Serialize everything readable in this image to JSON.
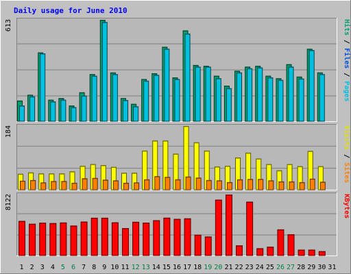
{
  "chart_data": {
    "type": "bar",
    "title": "Daily usage for June 2010",
    "categories": [
      "1",
      "2",
      "3",
      "4",
      "5",
      "6",
      "7",
      "8",
      "9",
      "10",
      "11",
      "12",
      "13",
      "14",
      "15",
      "16",
      "17",
      "18",
      "19",
      "20",
      "21",
      "22",
      "23",
      "24",
      "25",
      "26",
      "27",
      "28",
      "29",
      "30",
      "31"
    ],
    "weekend_days": [
      "5",
      "6",
      "12",
      "13",
      "19",
      "20",
      "26",
      "27"
    ],
    "panels": [
      {
        "id": "pages-files-hits",
        "max_label": "613",
        "ylim": [
          0,
          613
        ],
        "legend": [
          {
            "label": "Pages",
            "color": "#00c0e0"
          },
          {
            "label": "Files",
            "color": "#0050e0"
          },
          {
            "label": "Hits",
            "color": "#00a070"
          }
        ],
        "series": [
          {
            "name": "Hits",
            "color": "#00a070",
            "values": [
              125,
              160,
              416,
              130,
              140,
              95,
              175,
              285,
              613,
              295,
              140,
              105,
              255,
              290,
              450,
              265,
              549,
              340,
              335,
              275,
              215,
              305,
              330,
              335,
              275,
              260,
              345,
              270,
              438,
              295,
              0
            ]
          },
          {
            "name": "Files",
            "color": "#00c0e0",
            "values": [
              95,
              150,
              410,
              120,
              130,
              85,
              155,
              275,
              600,
              285,
              128,
              90,
              245,
              280,
              438,
              255,
              530,
              330,
              330,
              260,
              200,
              295,
              320,
              325,
              265,
              250,
              330,
              258,
              430,
              285,
              0
            ]
          }
        ]
      },
      {
        "id": "visits-sites",
        "max_label": "184",
        "ylim": [
          0,
          184
        ],
        "legend": [
          {
            "label": "Sites",
            "color": "#ff8000"
          },
          {
            "label": "Visits",
            "color": "#e0e000"
          }
        ],
        "series": [
          {
            "name": "Visits",
            "color": "#ffff00",
            "values": [
              46,
              50,
              47,
              47,
              47,
              53,
              69,
              74,
              71,
              66,
              49,
              49,
              113,
              142,
              142,
              104,
              184,
              137,
              113,
              67,
              69,
              93,
              107,
              90,
              74,
              56,
              74,
              68,
              112,
              68,
              0
            ]
          },
          {
            "name": "Sites",
            "color": "#ff8000",
            "values": [
              26,
              28,
              21,
              25,
              25,
              20,
              33,
              34,
              29,
              27,
              20,
              21,
              30,
              39,
              37,
              30,
              38,
              35,
              28,
              27,
              22,
              30,
              31,
              31,
              27,
              24,
              24,
              22,
              32,
              23,
              0
            ]
          }
        ]
      },
      {
        "id": "kbytes",
        "max_label": "8122",
        "ylim": [
          0,
          8122
        ],
        "legend": [
          {
            "label": "KBytes",
            "color": "#ff0000"
          }
        ],
        "series": [
          {
            "name": "KBytes",
            "color": "#ff0000",
            "values": [
              4610,
              4230,
              4370,
              4320,
              4400,
              3990,
              4520,
              5030,
              5030,
              4420,
              3650,
              4490,
              4380,
              4700,
              5040,
              4880,
              4950,
              2770,
              2530,
              7440,
              8122,
              1350,
              7170,
              970,
              1170,
              3480,
              2830,
              780,
              780,
              580,
              0
            ]
          }
        ]
      }
    ]
  }
}
